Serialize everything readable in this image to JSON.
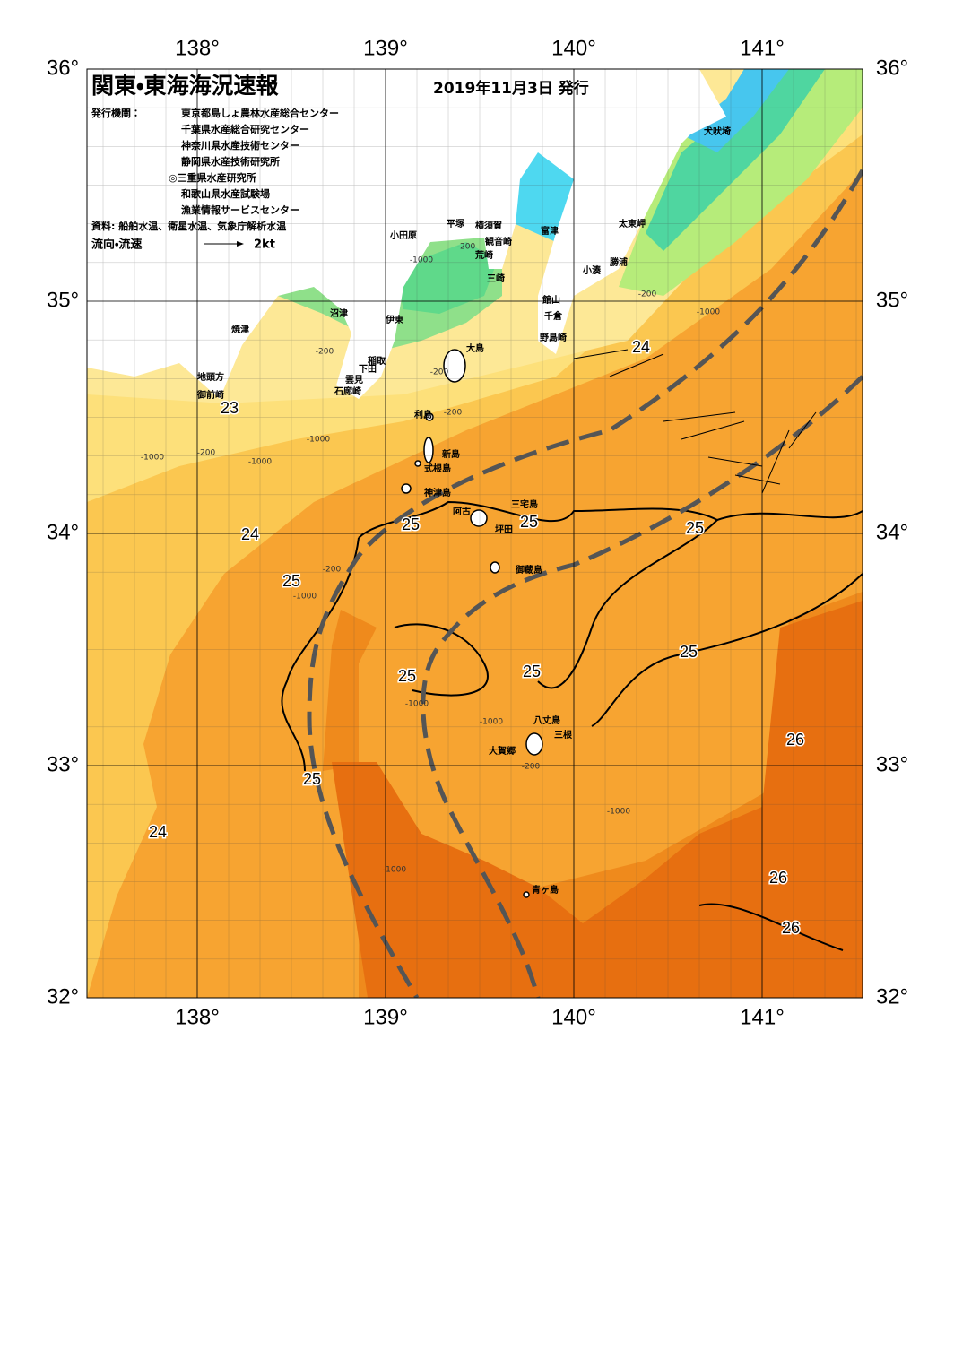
{
  "header": {
    "title": "関東・東海海況速報",
    "date": "2019年11月3日 発行",
    "issuer_label": "発行機関：",
    "issuers": [
      "東京都島しょ農林水産総合センター",
      "千葉県水産総合研究センター",
      "神奈川県水産技術センター",
      "静岡県水産技術研究所",
      "◎三重県水産研究所",
      "和歌山県水産試験場",
      "漁業情報サービスセンター"
    ],
    "source": "資料: 船舶水温、衛星水温、気象庁解析水温",
    "current_label": "流向・流速",
    "current_scale": "2kt"
  },
  "axes": {
    "lon_ticks": [
      {
        "value": 138,
        "label": "138°"
      },
      {
        "value": 139,
        "label": "139°"
      },
      {
        "value": 140,
        "label": "140°"
      },
      {
        "value": 141,
        "label": "141°"
      }
    ],
    "lat_ticks": [
      {
        "value": 36,
        "label": "36°"
      },
      {
        "value": 35,
        "label": "35°"
      },
      {
        "value": 34,
        "label": "34°"
      },
      {
        "value": 33,
        "label": "33°"
      },
      {
        "value": 32,
        "label": "32°"
      }
    ]
  },
  "places": [
    "犬吠埼",
    "太東岬",
    "勝浦",
    "小湊",
    "富津",
    "館山",
    "千倉",
    "野島崎",
    "横須賀",
    "観音崎",
    "平塚",
    "荒崎",
    "三崎",
    "小田原",
    "沼津",
    "伊東",
    "焼津",
    "稲取",
    "下田",
    "雲見",
    "石廊崎",
    "地頭方",
    "御前崎",
    "大島",
    "利島",
    "新島",
    "式根島",
    "神津島",
    "三宅島",
    "阿古",
    "坪田",
    "御蔵島",
    "八丈島",
    "三根",
    "大賀郷",
    "青ヶ島"
  ],
  "temperature_labels": [
    "23",
    "24",
    "25",
    "25",
    "25",
    "25",
    "25",
    "25",
    "25",
    "26",
    "25",
    "24",
    "26",
    "26",
    "24"
  ],
  "depth_labels": [
    "-200",
    "-1000",
    "-200",
    "-1000",
    "-200",
    "-200",
    "-200",
    "-1000",
    "-200",
    "-1000",
    "-200",
    "-1000",
    "-1000",
    "-1000",
    "-200",
    "-1000",
    "-1000",
    "-1000"
  ]
}
